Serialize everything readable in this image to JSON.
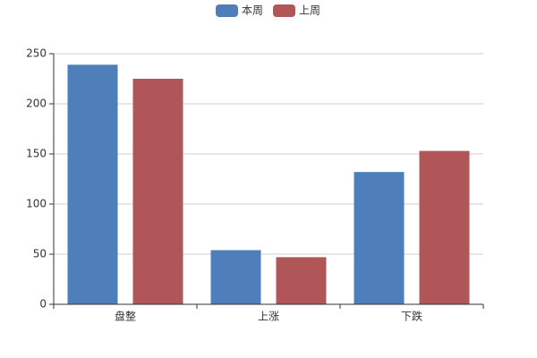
{
  "chart_data": {
    "type": "bar",
    "categories": [
      "盘整",
      "上涨",
      "下跌"
    ],
    "series": [
      {
        "name": "本周",
        "color": "#4f7fbb",
        "values": [
          239,
          54,
          132
        ]
      },
      {
        "name": "上周",
        "color": "#b05558",
        "values": [
          225,
          47,
          153
        ]
      }
    ],
    "ylim": [
      0,
      250
    ],
    "yticks": [
      0,
      50,
      100,
      150,
      200,
      250
    ],
    "grid": true,
    "legend": "top"
  }
}
